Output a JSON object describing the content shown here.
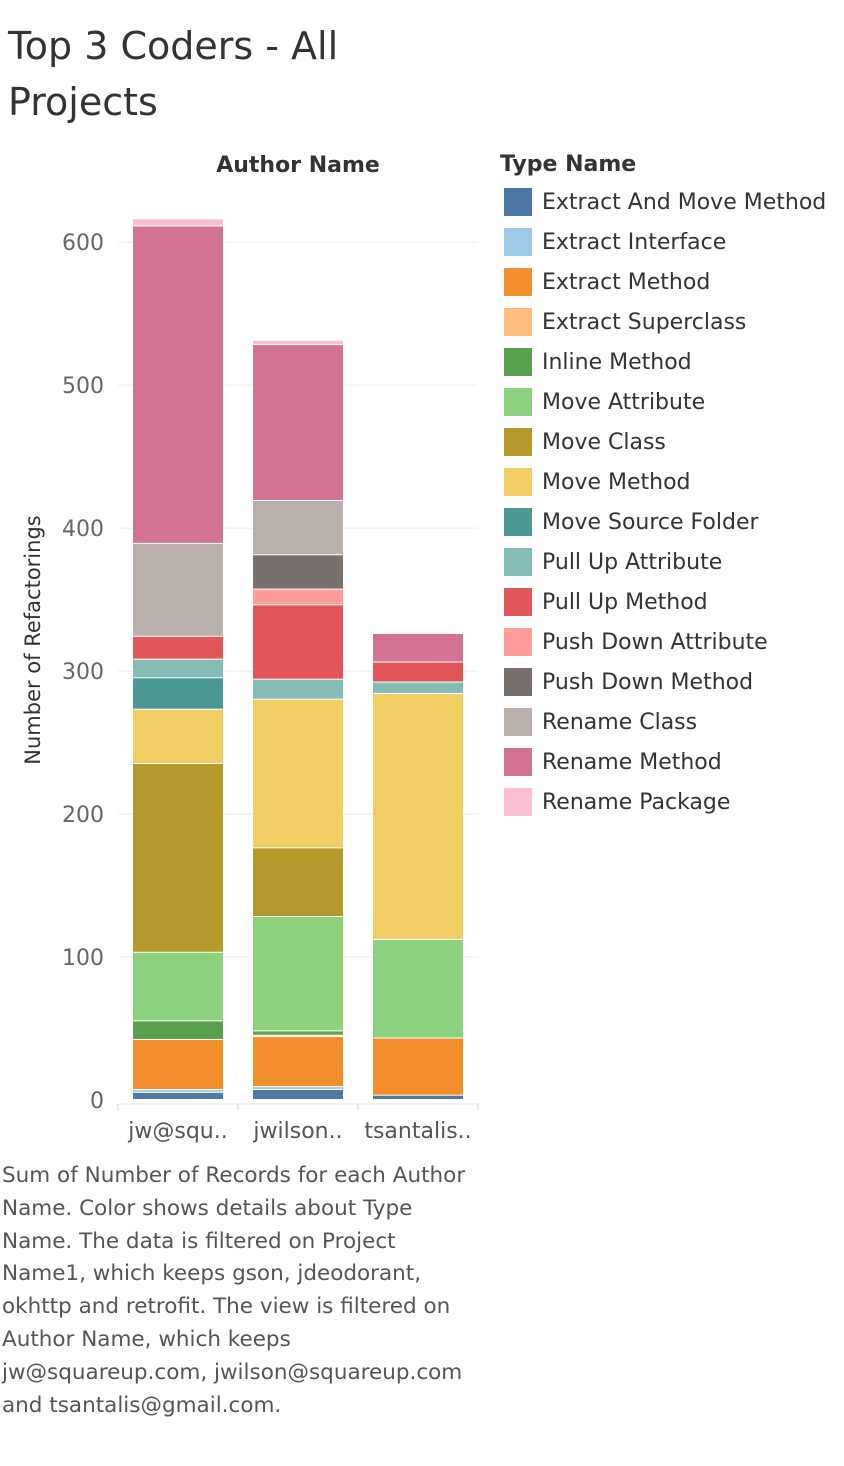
{
  "title": "Top 3 Coders - All Projects",
  "caption": "Sum of Number of Records for each Author Name.  Color shows details about Type Name. The data is filtered on Project Name1, which keeps gson, jdeodorant, okhttp and retrofit. The view is filtered on Author Name, which keeps jw@squareup.com, jwilson@squareup.com and tsantalis@gmail.com.",
  "chart_data": {
    "type": "bar",
    "stacked": true,
    "column_header": "Author Name",
    "ylabel": "Number of Refactorings",
    "ylim": [
      0,
      640
    ],
    "yticks": [
      0,
      100,
      200,
      300,
      400,
      500,
      600
    ],
    "grid": true,
    "legend_placement": "right",
    "legend_title": "Type Name",
    "categories": [
      "jw@squ..",
      "jwilson..",
      "tsantalis.."
    ],
    "series": [
      {
        "name": "Extract And Move Method",
        "color": "#4e79a7",
        "values": [
          5,
          7,
          3
        ]
      },
      {
        "name": "Extract Interface",
        "color": "#a0cbe8",
        "values": [
          2,
          2,
          0
        ]
      },
      {
        "name": "Extract Method",
        "color": "#f28e2b",
        "values": [
          35,
          35,
          40
        ]
      },
      {
        "name": "Extract Superclass",
        "color": "#ffbe7d",
        "values": [
          0,
          1,
          0
        ]
      },
      {
        "name": "Inline Method",
        "color": "#59a14f",
        "values": [
          13,
          3,
          0
        ]
      },
      {
        "name": "Move Attribute",
        "color": "#8cd17d",
        "values": [
          48,
          80,
          69
        ]
      },
      {
        "name": "Move Class",
        "color": "#b6992d",
        "values": [
          132,
          48,
          0
        ]
      },
      {
        "name": "Move Method",
        "color": "#f1ce63",
        "values": [
          38,
          104,
          172
        ]
      },
      {
        "name": "Move Source Folder",
        "color": "#499894",
        "values": [
          22,
          0,
          0
        ]
      },
      {
        "name": "Pull Up Attribute",
        "color": "#86bcb6",
        "values": [
          13,
          14,
          8
        ]
      },
      {
        "name": "Pull Up Method",
        "color": "#e15759",
        "values": [
          16,
          52,
          14
        ]
      },
      {
        "name": "Push Down Attribute",
        "color": "#ff9d9a",
        "values": [
          0,
          11,
          0
        ]
      },
      {
        "name": "Push Down Method",
        "color": "#79706e",
        "values": [
          0,
          24,
          0
        ]
      },
      {
        "name": "Rename Class",
        "color": "#bab0ac",
        "values": [
          65,
          38,
          0
        ]
      },
      {
        "name": "Rename Method",
        "color": "#d37295",
        "values": [
          222,
          109,
          20
        ]
      },
      {
        "name": "Rename Package",
        "color": "#fabfd2",
        "values": [
          5,
          3,
          0
        ]
      }
    ]
  }
}
